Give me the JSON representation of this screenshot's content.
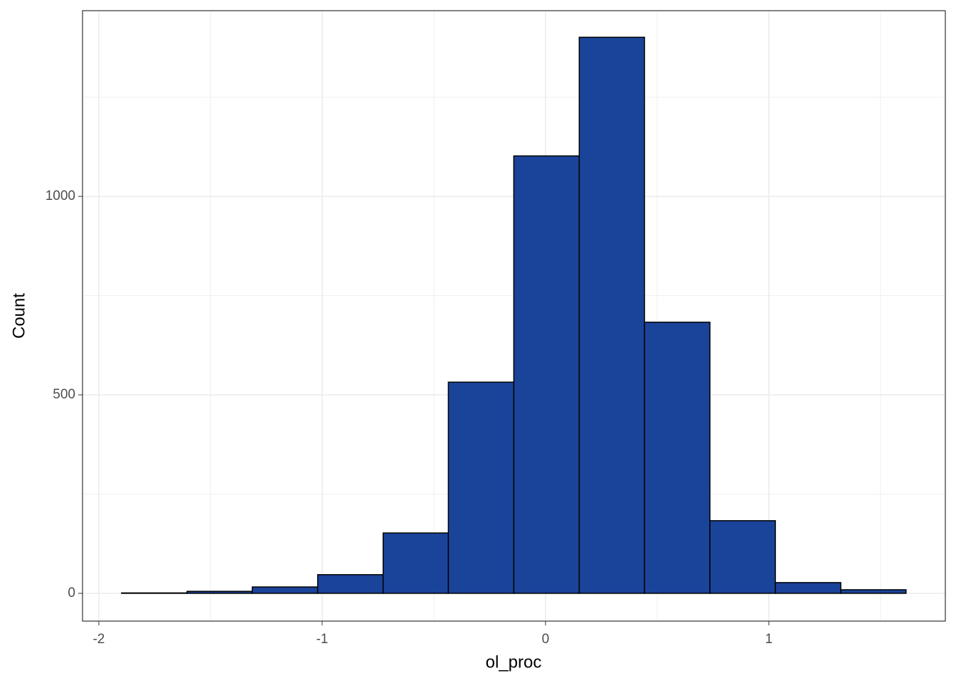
{
  "chart_data": {
    "type": "histogram",
    "xlabel": "ol_proc",
    "ylabel": "Count",
    "bins": [
      -1.898,
      -1.605,
      -1.313,
      -1.02,
      -0.727,
      -0.435,
      -0.142,
      0.151,
      0.443,
      0.736,
      1.029,
      1.322,
      1.614
    ],
    "values": [
      1,
      5,
      16,
      47,
      152,
      532,
      1102,
      1401,
      683,
      183,
      27,
      9
    ],
    "color": "#1a4499",
    "edgecolor": "#000000",
    "xlim": [
      -2.073,
      1.79
    ],
    "ylim": [
      -70,
      1468
    ],
    "xticks": [
      -2,
      -1,
      0,
      1
    ],
    "yticks": [
      0,
      500,
      1000
    ],
    "x_minor_grid": [
      -1.5,
      -0.5,
      0.5,
      1.5
    ],
    "y_minor_grid": [
      250,
      750,
      1250
    ],
    "grid": true
  }
}
